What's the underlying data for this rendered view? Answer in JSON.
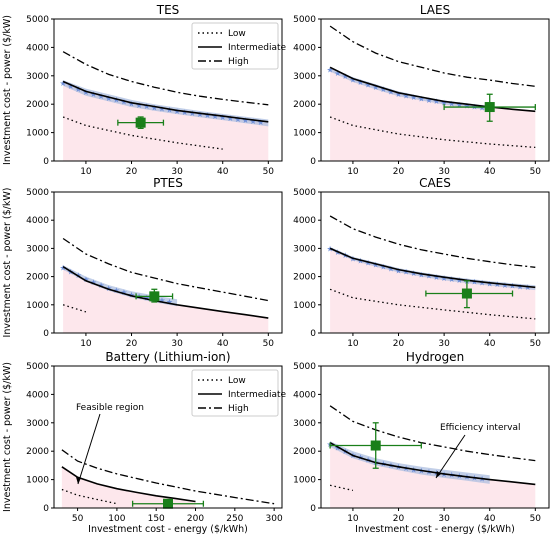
{
  "figure": {
    "ylabel": "Investment cost - power ($/kW)",
    "xlabel": "Investment cost - energy ($/kWh)",
    "legend": [
      "Low",
      "Intermediate",
      "High"
    ],
    "annotations": {
      "feasible": "Feasible region",
      "efficiency": "Efficiency interval"
    }
  },
  "chart_data": [
    {
      "title": "TES",
      "type": "line",
      "xlim": [
        3,
        53
      ],
      "ylim": [
        0,
        5000
      ],
      "xticks": [
        10,
        20,
        30,
        40,
        50
      ],
      "yticks": [
        0,
        1000,
        2000,
        3000,
        4000,
        5000
      ],
      "legend": true,
      "series": [
        {
          "name": "Low",
          "x": [
            5,
            10,
            20,
            30,
            40
          ],
          "y": [
            1550,
            1250,
            900,
            640,
            420
          ]
        },
        {
          "name": "Intermediate",
          "x": [
            5,
            10,
            15,
            20,
            25,
            30,
            35,
            40,
            45,
            50
          ],
          "y": [
            2800,
            2450,
            2250,
            2050,
            1920,
            1780,
            1680,
            1580,
            1480,
            1380
          ]
        },
        {
          "name": "High",
          "x": [
            5,
            10,
            15,
            20,
            25,
            30,
            35,
            40,
            45,
            50
          ],
          "y": [
            3850,
            3400,
            3050,
            2800,
            2600,
            2420,
            2280,
            2170,
            2070,
            1980
          ]
        }
      ],
      "band": {
        "x": [
          5,
          10,
          15,
          20,
          25,
          30,
          35,
          40,
          45,
          50
        ],
        "upper": [
          2850,
          2550,
          2350,
          2150,
          2000,
          1880,
          1760,
          1660,
          1560,
          1460
        ],
        "lower": [
          2650,
          2300,
          2100,
          1900,
          1770,
          1650,
          1540,
          1440,
          1330,
          1220
        ]
      },
      "point": {
        "x": 22,
        "y": 1350,
        "xerr": [
          17,
          27
        ],
        "yerr": [
          1150,
          1550
        ]
      }
    },
    {
      "title": "LAES",
      "type": "line",
      "xlim": [
        3,
        53
      ],
      "ylim": [
        0,
        5000
      ],
      "xticks": [
        10,
        20,
        30,
        40,
        50
      ],
      "yticks": [
        0,
        1000,
        2000,
        3000,
        4000,
        5000
      ],
      "legend": false,
      "series": [
        {
          "name": "Low",
          "x": [
            5,
            10,
            20,
            30,
            40,
            50
          ],
          "y": [
            1550,
            1250,
            950,
            750,
            600,
            480
          ]
        },
        {
          "name": "Intermediate",
          "x": [
            5,
            10,
            15,
            20,
            25,
            30,
            35,
            40,
            45,
            50
          ],
          "y": [
            3300,
            2900,
            2650,
            2400,
            2250,
            2100,
            2000,
            1900,
            1820,
            1750
          ]
        },
        {
          "name": "High",
          "x": [
            5,
            10,
            15,
            20,
            25,
            30,
            35,
            40,
            45,
            50
          ],
          "y": [
            4750,
            4200,
            3800,
            3500,
            3300,
            3100,
            2950,
            2850,
            2730,
            2630
          ]
        }
      ],
      "band": {
        "x": [
          5,
          10,
          15,
          20,
          25,
          30,
          35,
          40
        ],
        "upper": [
          3300,
          2950,
          2700,
          2450,
          2280,
          2130,
          2030,
          1940
        ],
        "lower": [
          3150,
          2780,
          2520,
          2280,
          2130,
          1990,
          1880,
          1780
        ]
      },
      "point": {
        "x": 40,
        "y": 1900,
        "xerr": [
          30,
          50
        ],
        "yerr": [
          1400,
          2350
        ]
      }
    },
    {
      "title": "PTES",
      "type": "line",
      "xlim": [
        3,
        53
      ],
      "ylim": [
        0,
        5000
      ],
      "xticks": [
        10,
        20,
        30,
        40,
        50
      ],
      "yticks": [
        0,
        1000,
        2000,
        3000,
        4000,
        5000
      ],
      "legend": false,
      "series": [
        {
          "name": "Low",
          "x": [
            5,
            10
          ],
          "y": [
            1000,
            750
          ]
        },
        {
          "name": "Intermediate",
          "x": [
            5,
            10,
            15,
            20,
            25,
            30,
            35,
            40,
            45,
            50
          ],
          "y": [
            2350,
            1850,
            1550,
            1320,
            1150,
            1000,
            880,
            760,
            650,
            530
          ]
        },
        {
          "name": "High",
          "x": [
            5,
            10,
            15,
            20,
            25,
            30,
            35,
            40,
            45,
            50
          ],
          "y": [
            3350,
            2800,
            2450,
            2150,
            1950,
            1750,
            1600,
            1450,
            1300,
            1150
          ]
        }
      ],
      "band": {
        "x": [
          5,
          10,
          15,
          20,
          25,
          30
        ],
        "upper": [
          2400,
          2000,
          1700,
          1480,
          1330,
          1200
        ],
        "lower": [
          2250,
          1820,
          1500,
          1260,
          1090,
          950
        ]
      },
      "point": {
        "x": 25,
        "y": 1300,
        "xerr": [
          21,
          29
        ],
        "yerr": [
          1100,
          1550
        ]
      }
    },
    {
      "title": "CAES",
      "type": "line",
      "xlim": [
        3,
        53
      ],
      "ylim": [
        0,
        5000
      ],
      "xticks": [
        10,
        20,
        30,
        40,
        50
      ],
      "yticks": [
        0,
        1000,
        2000,
        3000,
        4000,
        5000
      ],
      "legend": false,
      "series": [
        {
          "name": "Low",
          "x": [
            5,
            10,
            20,
            30,
            40,
            50
          ],
          "y": [
            1550,
            1250,
            1000,
            820,
            650,
            500
          ]
        },
        {
          "name": "Intermediate",
          "x": [
            5,
            10,
            15,
            20,
            25,
            30,
            35,
            40,
            45,
            50
          ],
          "y": [
            3000,
            2650,
            2450,
            2250,
            2100,
            1980,
            1870,
            1780,
            1700,
            1620
          ]
        },
        {
          "name": "High",
          "x": [
            5,
            10,
            15,
            20,
            25,
            30,
            35,
            40,
            45,
            50
          ],
          "y": [
            4150,
            3700,
            3400,
            3150,
            2950,
            2800,
            2650,
            2530,
            2420,
            2330
          ]
        }
      ],
      "band": {
        "x": [
          5,
          10,
          15,
          20,
          25,
          30,
          35,
          40,
          45,
          50
        ],
        "upper": [
          3050,
          2700,
          2500,
          2300,
          2150,
          2030,
          1930,
          1840,
          1760,
          1690
        ],
        "lower": [
          2950,
          2580,
          2350,
          2150,
          2000,
          1870,
          1770,
          1680,
          1600,
          1520
        ]
      },
      "point": {
        "x": 35,
        "y": 1400,
        "xerr": [
          26,
          45
        ],
        "yerr": [
          900,
          1850
        ]
      }
    },
    {
      "title": "Battery (Lithium-ion)",
      "type": "line",
      "xlim": [
        20,
        310
      ],
      "ylim": [
        0,
        5000
      ],
      "xticks": [
        50,
        100,
        150,
        200,
        250,
        300
      ],
      "yticks": [
        0,
        1000,
        2000,
        3000,
        4000,
        5000
      ],
      "legend": true,
      "series": [
        {
          "name": "Low",
          "x": [
            30,
            50,
            75,
            100
          ],
          "y": [
            650,
            450,
            300,
            150
          ]
        },
        {
          "name": "Intermediate",
          "x": [
            30,
            50,
            75,
            100,
            125,
            150,
            175,
            200
          ],
          "y": [
            1450,
            1080,
            850,
            680,
            550,
            430,
            330,
            230
          ]
        },
        {
          "name": "High",
          "x": [
            30,
            50,
            75,
            100,
            150,
            200,
            250,
            300
          ],
          "y": [
            2050,
            1650,
            1400,
            1200,
            880,
            600,
            370,
            150
          ]
        }
      ],
      "band": null,
      "point": {
        "x": 165,
        "y": 150,
        "xerr": [
          120,
          210
        ],
        "yerr": [
          100,
          200
        ]
      }
    },
    {
      "title": "Hydrogen",
      "type": "line",
      "xlim": [
        3,
        53
      ],
      "ylim": [
        0,
        5000
      ],
      "xticks": [
        10,
        20,
        30,
        40,
        50
      ],
      "yticks": [
        0,
        1000,
        2000,
        3000,
        4000,
        5000
      ],
      "legend": false,
      "series": [
        {
          "name": "Low",
          "x": [
            5,
            10
          ],
          "y": [
            800,
            620
          ]
        },
        {
          "name": "Intermediate",
          "x": [
            5,
            10,
            15,
            20,
            25,
            30,
            35,
            40,
            45,
            50
          ],
          "y": [
            2300,
            1850,
            1600,
            1450,
            1320,
            1200,
            1100,
            1000,
            920,
            830
          ]
        },
        {
          "name": "High",
          "x": [
            5,
            10,
            15,
            20,
            25,
            30,
            35,
            40,
            45,
            50
          ],
          "y": [
            3600,
            3050,
            2750,
            2500,
            2300,
            2150,
            2000,
            1880,
            1770,
            1670
          ]
        }
      ],
      "band": {
        "x": [
          5,
          10,
          15,
          20,
          25,
          30,
          35,
          40
        ],
        "upper": [
          2350,
          2000,
          1750,
          1580,
          1450,
          1350,
          1250,
          1150
        ],
        "lower": [
          2150,
          1750,
          1500,
          1330,
          1180,
          1060,
          960,
          850
        ]
      },
      "point": {
        "x": 15,
        "y": 2200,
        "xerr": [
          5,
          25
        ],
        "yerr": [
          1400,
          3000
        ]
      }
    }
  ]
}
